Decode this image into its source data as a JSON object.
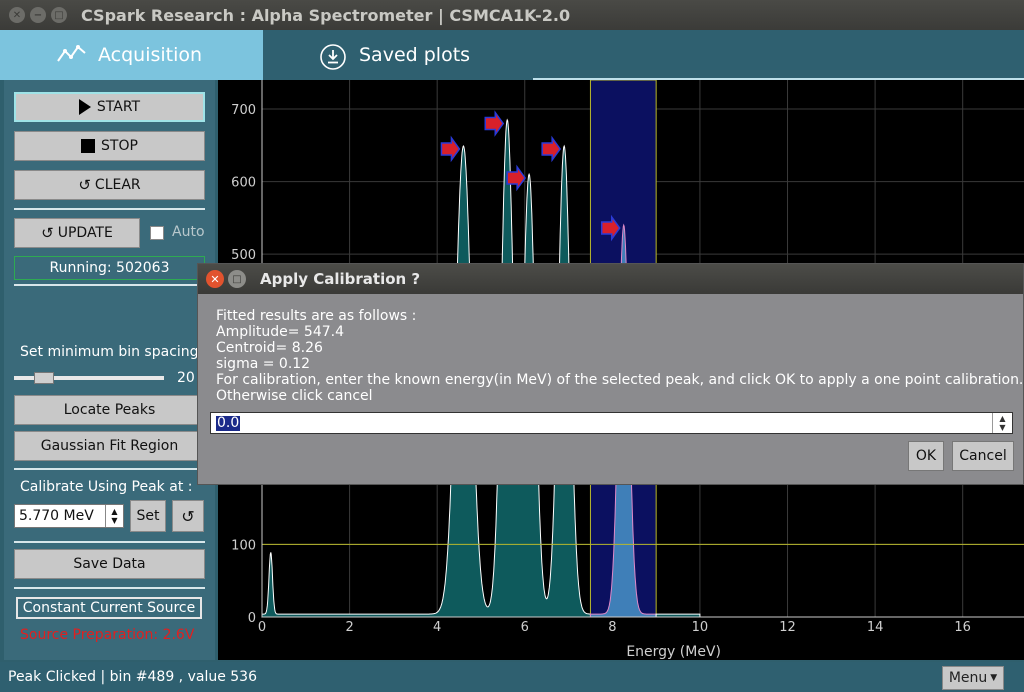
{
  "window": {
    "title": "CSpark Research : Alpha Spectrometer | CSMCA1K-2.0"
  },
  "tabs": [
    {
      "label": "Acquisition",
      "icon": "line-chart-icon"
    },
    {
      "label": "Saved plots",
      "icon": "download-icon"
    }
  ],
  "sidebar": {
    "start_label": "START",
    "stop_label": "STOP",
    "clear_label": "CLEAR",
    "update_label": "UPDATE",
    "auto_label": "Auto",
    "running_text": "Running: 502063",
    "min_bin_label": "Set minimum bin spacing",
    "min_bin_value": "20",
    "locate_peaks_label": "Locate Peaks",
    "gaussian_fit_label": "Gaussian Fit Region",
    "calibrate_label": "Calibrate Using Peak at :",
    "calibrate_value": "5.770 MeV",
    "set_label": "Set",
    "save_data_label": "Save Data",
    "ccs_label": "Constant Current Source",
    "source_prep_text": "Source Preparation: 2.6V"
  },
  "chart_data": {
    "type": "line",
    "xlabel": "Energy (MeV)",
    "ylabel": "",
    "xlim": [
      0,
      17.4
    ],
    "ylim": [
      0,
      740
    ],
    "x_ticks": [
      0,
      2,
      4,
      6,
      8,
      10,
      12,
      14,
      16
    ],
    "y_ticks": [
      0,
      100,
      500,
      600,
      700
    ],
    "threshold_line": 100,
    "selected_region": [
      7.5,
      9.0
    ],
    "peaks": [
      {
        "x": 4.6,
        "y": 645,
        "width": 0.18
      },
      {
        "x": 5.6,
        "y": 680,
        "width": 0.14
      },
      {
        "x": 6.1,
        "y": 605,
        "width": 0.14
      },
      {
        "x": 6.9,
        "y": 645,
        "width": 0.14
      },
      {
        "x": 8.26,
        "y": 536,
        "width": 0.12
      }
    ],
    "colors": {
      "fill": "#0e5a5c",
      "selected_fill": "#3f7fb8",
      "line": "#ffffff",
      "region": "#0b1060",
      "threshold": "#b8b82c",
      "marker": "#d8202a",
      "marker_outline": "#2a3ad8",
      "grid": "#3a3a3a"
    }
  },
  "dialog": {
    "title": "Apply Calibration ?",
    "lines": [
      "Fitted results are as follows :",
      "Amplitude= 547.4",
      "Centroid=  8.26",
      "sigma =  0.12",
      "For calibration, enter the known energy(in MeV) of the selected peak, and click OK to apply a one point calibration.",
      "Otherwise click cancel"
    ],
    "input_value": "0.0",
    "ok_label": "OK",
    "cancel_label": "Cancel"
  },
  "status": {
    "text": "Peak Clicked | bin #489 , value 536",
    "menu_label": "Menu"
  }
}
